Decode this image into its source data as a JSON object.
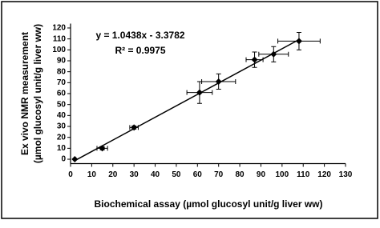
{
  "chart_data": {
    "type": "scatter",
    "xlabel": "Biochemical assay (µmol glucosyl unit/g liver ww)",
    "ylabel": [
      "Ex vivo NMR measurement",
      "(µmol glucosyl unit/g liver ww)"
    ],
    "annotations": [
      "y = 1.0438x - 3.3782",
      "R² = 0.9975"
    ],
    "fit": {
      "slope": 1.0438,
      "intercept": -3.3782
    },
    "x": [
      2,
      15,
      30,
      61,
      70,
      87,
      96,
      108
    ],
    "xerr": [
      0,
      2.5,
      2,
      6,
      8,
      4,
      7,
      10
    ],
    "series": [
      {
        "color": "#000000",
        "values": [
          0,
          10,
          29,
          61,
          71,
          91,
          96,
          108
        ],
        "yerr": [
          0,
          1.5,
          1.5,
          10,
          7,
          7,
          7,
          8
        ]
      }
    ],
    "xlim": [
      0,
      130
    ],
    "xticks": [
      0,
      10,
      20,
      30,
      40,
      50,
      60,
      70,
      80,
      90,
      100,
      110,
      120,
      130
    ],
    "ylim": [
      -4,
      124
    ],
    "yticks": [
      0,
      10,
      20,
      30,
      40,
      50,
      60,
      70,
      80,
      90,
      100,
      110,
      120
    ]
  }
}
